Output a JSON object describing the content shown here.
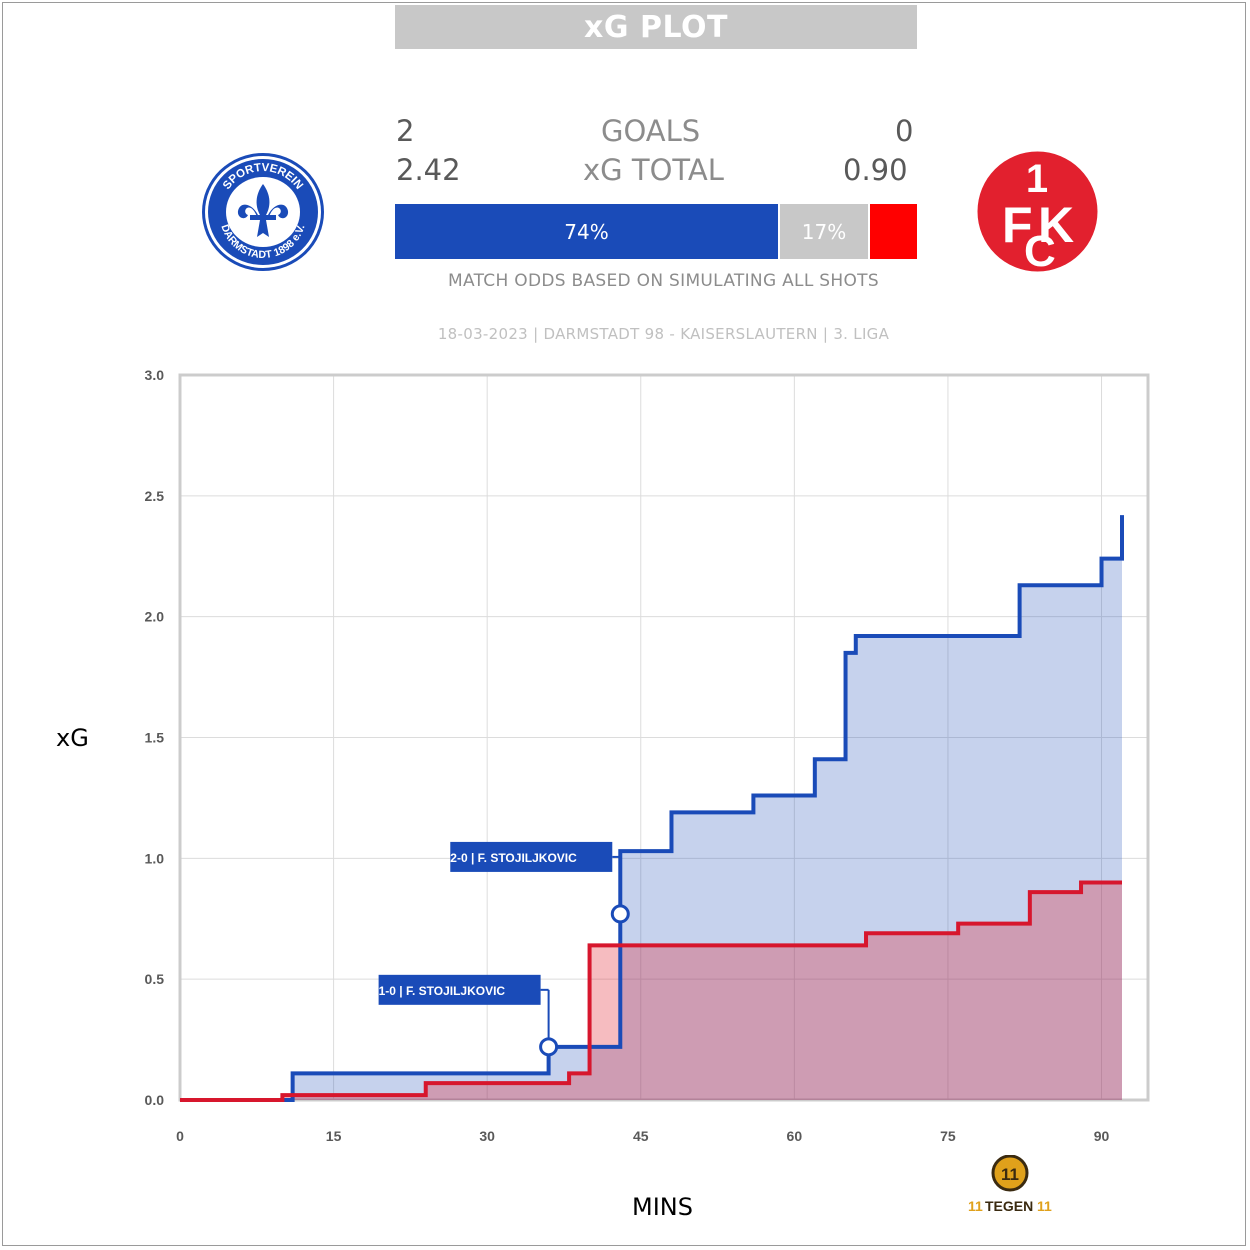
{
  "header": {
    "title": "xG PLOT"
  },
  "stats": {
    "home_goals": "2",
    "away_goals": "0",
    "goals_label": "GOALS",
    "home_xg": "2.42",
    "away_xg": "0.90",
    "xg_label": "xG TOTAL"
  },
  "teams": {
    "home": {
      "crest_top": "SPORTVEREIN",
      "crest_bottom": "DARMSTADT 1898 e.V.",
      "color": "#1a4bb8"
    },
    "away": {
      "crest_text": "1FCK",
      "color": "#e2202e"
    }
  },
  "odds": {
    "home_label": "74%",
    "draw_label": "17%",
    "home": 0.74,
    "draw": 0.17,
    "away": 0.09,
    "caption": "MATCH ODDS BASED ON SIMULATING ALL SHOTS"
  },
  "match_info": "18-03-2023 | DARMSTADT 98 - KAISERSLAUTERN | 3. LIGA",
  "axes": {
    "ylabel": "xG",
    "xlabel": "MINS"
  },
  "brand": {
    "text": "TEGEN",
    "badge": "11"
  },
  "chart_data": {
    "type": "line",
    "xlim": [
      0,
      92
    ],
    "ylim": [
      0,
      3.0
    ],
    "xticks": [
      0,
      15,
      30,
      45,
      60,
      75,
      90
    ],
    "yticks": [
      "0.0",
      "0.5",
      "1.0",
      "1.5",
      "2.0",
      "2.5",
      "3.0"
    ],
    "grid": true,
    "series": [
      {
        "color": "#1a4bb8",
        "fill": "rgba(26,75,184,0.25)",
        "points": [
          [
            0,
            0.0
          ],
          [
            11,
            0.0
          ],
          [
            11,
            0.11
          ],
          [
            36,
            0.11
          ],
          [
            36,
            0.22
          ],
          [
            43,
            0.22
          ],
          [
            43,
            1.03
          ],
          [
            48,
            1.03
          ],
          [
            48,
            1.19
          ],
          [
            56,
            1.19
          ],
          [
            56,
            1.26
          ],
          [
            62,
            1.26
          ],
          [
            62,
            1.41
          ],
          [
            65,
            1.41
          ],
          [
            65,
            1.85
          ],
          [
            66,
            1.85
          ],
          [
            66,
            1.92
          ],
          [
            82,
            1.92
          ],
          [
            82,
            2.13
          ],
          [
            90,
            2.13
          ],
          [
            90,
            2.24
          ],
          [
            92,
            2.24
          ],
          [
            92,
            2.42
          ]
        ]
      },
      {
        "color": "#d7162d",
        "fill": "rgba(226,32,46,0.30)",
        "points": [
          [
            0,
            0.0
          ],
          [
            10,
            0.0
          ],
          [
            10,
            0.02
          ],
          [
            24,
            0.02
          ],
          [
            24,
            0.07
          ],
          [
            38,
            0.07
          ],
          [
            38,
            0.11
          ],
          [
            40,
            0.11
          ],
          [
            40,
            0.64
          ],
          [
            67,
            0.64
          ],
          [
            67,
            0.69
          ],
          [
            76,
            0.69
          ],
          [
            76,
            0.73
          ],
          [
            83,
            0.73
          ],
          [
            83,
            0.86
          ],
          [
            88,
            0.86
          ],
          [
            88,
            0.9
          ],
          [
            92,
            0.9
          ]
        ]
      }
    ],
    "annotations": [
      {
        "x": 36,
        "y": 0.22,
        "label": "1-0 | F. STOJILJKOVIC"
      },
      {
        "x": 43,
        "y": 0.77,
        "label": "2-0 | F. STOJILJKOVIC"
      }
    ]
  }
}
